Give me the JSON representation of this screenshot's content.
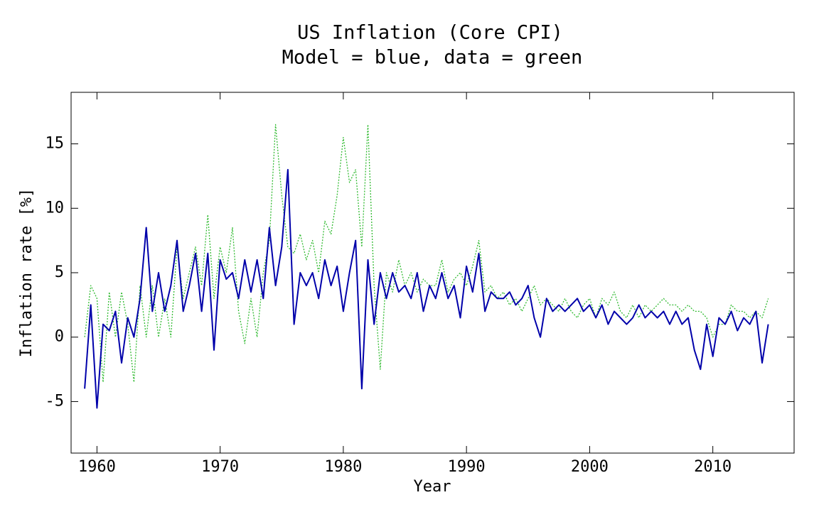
{
  "chart_data": {
    "type": "line",
    "title": "US Inflation (Core CPI)",
    "subtitle": "Model = blue, data = green",
    "x_label": "Year",
    "y_label": "Inflation rate [%]",
    "xlim": [
      1957.9,
      2016.6
    ],
    "ylim": [
      -9,
      19
    ],
    "xticks": [
      1960,
      1970,
      1980,
      1990,
      2000,
      2010
    ],
    "yticks": [
      -5,
      0,
      5,
      10,
      15
    ],
    "x": [
      1959,
      1959.5,
      1960,
      1960.5,
      1961,
      1961.5,
      1962,
      1962.5,
      1963,
      1963.5,
      1964,
      1964.5,
      1965,
      1965.5,
      1966,
      1966.5,
      1967,
      1967.5,
      1968,
      1968.5,
      1969,
      1969.5,
      1970,
      1970.5,
      1971,
      1971.5,
      1972,
      1972.5,
      1973,
      1973.5,
      1974,
      1974.5,
      1975,
      1975.5,
      1976,
      1976.5,
      1977,
      1977.5,
      1978,
      1978.5,
      1979,
      1979.5,
      1980,
      1980.5,
      1981,
      1981.5,
      1982,
      1982.5,
      1983,
      1983.5,
      1984,
      1984.5,
      1985,
      1985.5,
      1986,
      1986.5,
      1987,
      1987.5,
      1988,
      1988.5,
      1989,
      1989.5,
      1990,
      1990.5,
      1991,
      1991.5,
      1992,
      1992.5,
      1993,
      1993.5,
      1994,
      1994.5,
      1995,
      1995.5,
      1996,
      1996.5,
      1997,
      1997.5,
      1998,
      1998.5,
      1999,
      1999.5,
      2000,
      2000.5,
      2001,
      2001.5,
      2002,
      2002.5,
      2003,
      2003.5,
      2004,
      2004.5,
      2005,
      2005.5,
      2006,
      2006.5,
      2007,
      2007.5,
      2008,
      2008.5,
      2009,
      2009.5,
      2010,
      2010.5,
      2011,
      2011.5,
      2012,
      2012.5,
      2013,
      2013.5,
      2014,
      2014.5
    ],
    "series": [
      {
        "color": "#33bb33",
        "style": "dotted",
        "values": [
          0,
          4,
          3,
          -3.5,
          3.5,
          0,
          3.5,
          1,
          -3.5,
          4,
          0,
          4,
          0,
          3,
          0,
          7,
          3,
          5,
          7,
          4,
          9.5,
          3,
          7,
          5,
          8.5,
          2,
          -0.5,
          3,
          0,
          5,
          7.5,
          16.5,
          11,
          7,
          6.5,
          8,
          6,
          7.5,
          5,
          9,
          8,
          11,
          15.5,
          12,
          13,
          7,
          16.5,
          4,
          -2.5,
          5,
          3.5,
          6,
          4,
          5,
          3.5,
          4.5,
          4,
          4,
          6,
          3.5,
          4.5,
          5,
          4,
          5.5,
          7.5,
          3.5,
          4,
          3,
          3.5,
          2.5,
          3,
          2,
          3,
          4,
          2.5,
          3,
          2.5,
          2,
          3,
          2,
          1.5,
          2.5,
          3,
          1.5,
          3,
          2.5,
          3.5,
          2,
          1.5,
          2.5,
          1.5,
          2.5,
          2,
          2.5,
          3,
          2.5,
          2.5,
          2,
          2.5,
          2,
          2,
          1.5,
          0,
          1,
          1,
          2.5,
          2,
          2,
          1.5,
          2,
          1.5,
          3
        ]
      },
      {
        "color": "#0000aa",
        "style": "solid",
        "values": [
          -4,
          2.5,
          -5.5,
          1,
          0.5,
          2,
          -2,
          1.5,
          0,
          3,
          8.5,
          2,
          5,
          2,
          4,
          7.5,
          2,
          4,
          6.5,
          2,
          6.5,
          -1,
          6,
          4.5,
          5,
          3,
          6,
          3.5,
          6,
          3,
          8.5,
          4,
          7,
          13,
          1,
          5,
          4,
          5,
          3,
          6,
          4,
          5.5,
          2,
          5,
          7.5,
          -4,
          6,
          1,
          5,
          3,
          5,
          3.5,
          4,
          3,
          5,
          2,
          4,
          3,
          5,
          3,
          4,
          1.5,
          5.5,
          3.5,
          6.5,
          2,
          3.5,
          3,
          3,
          3.5,
          2.5,
          3,
          4,
          1.5,
          0,
          3,
          2,
          2.5,
          2,
          2.5,
          3,
          2,
          2.5,
          1.5,
          2.5,
          1,
          2,
          1.5,
          1,
          1.5,
          2.5,
          1.5,
          2,
          1.5,
          2,
          1,
          2,
          1,
          1.5,
          -1,
          -2.5,
          1,
          -1.5,
          1.5,
          1,
          2,
          0.5,
          1.5,
          1,
          2,
          -2,
          1
        ]
      }
    ]
  }
}
